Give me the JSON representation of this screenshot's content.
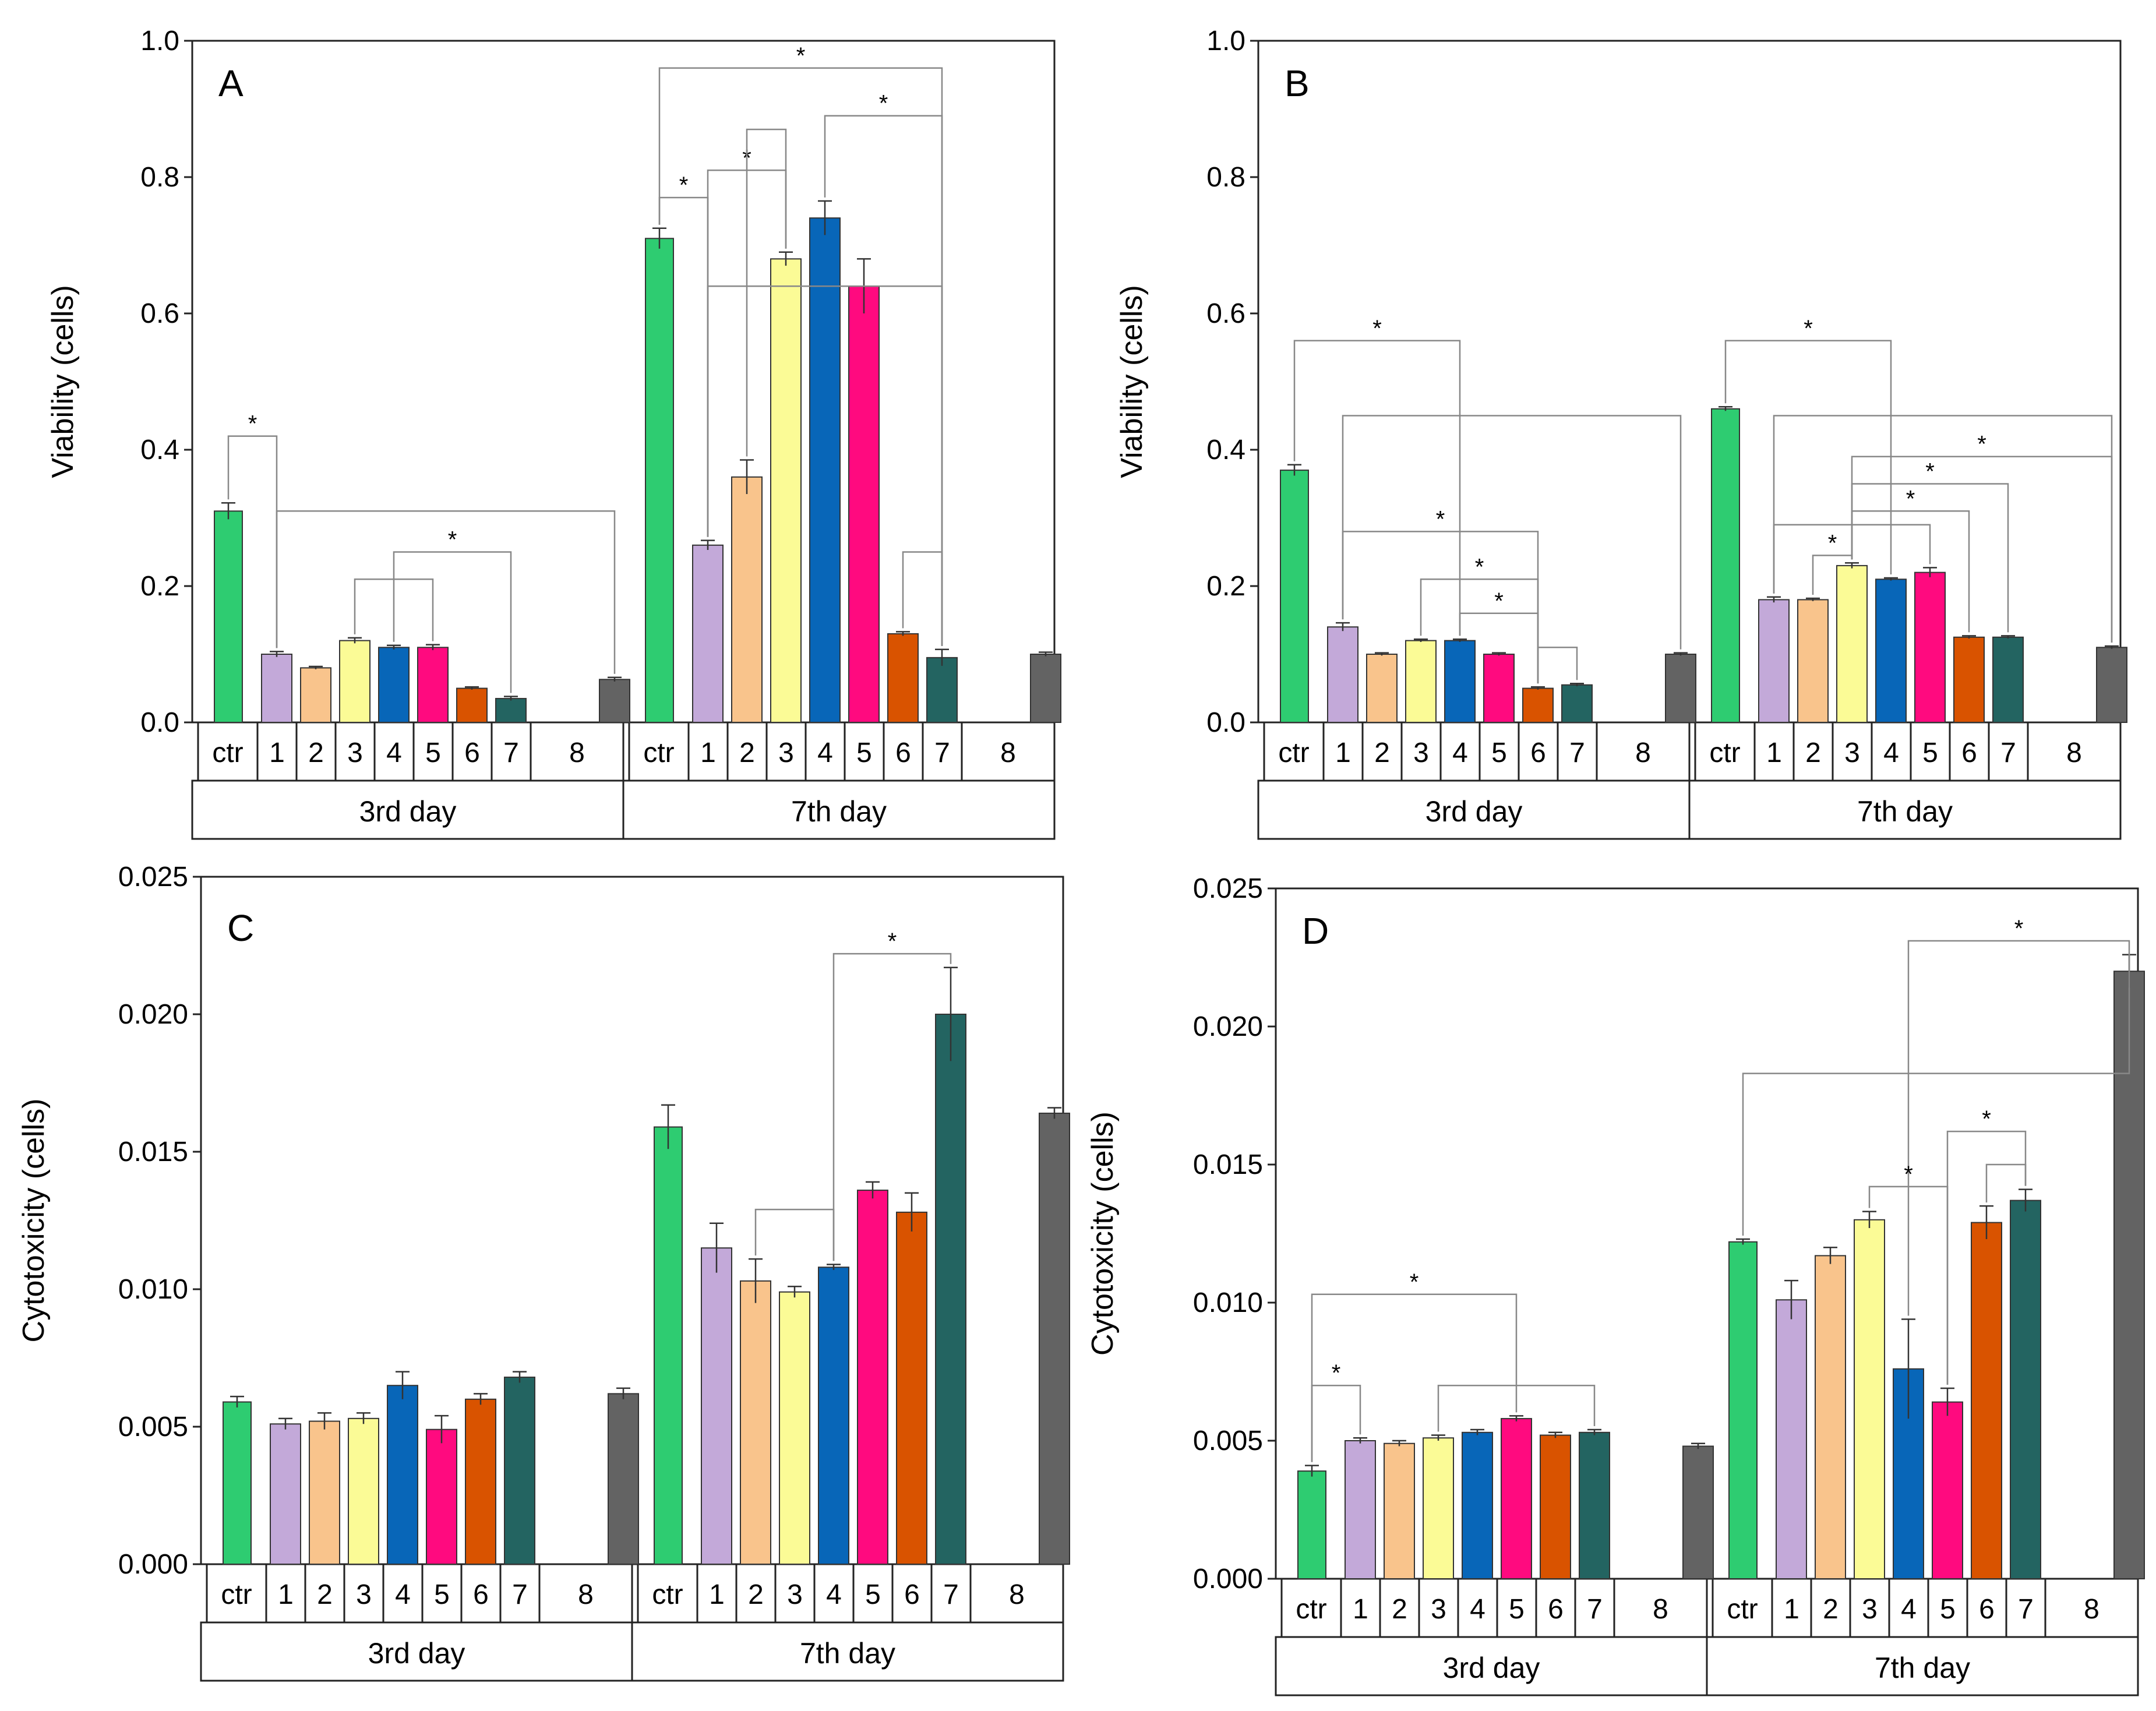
{
  "figure": {
    "colors": [
      "#2ecc71",
      "#c3a9d9",
      "#f9c48c",
      "#fbfb96",
      "#0866b8",
      "#ff0a7f",
      "#d95300",
      "#236461",
      "#636363"
    ]
  },
  "chart_data": [
    {
      "type": "bar",
      "panel": "A",
      "ylabel": "Viability (cells)",
      "ylim": [
        0,
        1.0
      ],
      "yticks": [
        "0.0",
        "0.2",
        "0.4",
        "0.6",
        "0.8",
        "1.0"
      ],
      "categories": [
        "ctr",
        "1",
        "2",
        "3",
        "4",
        "5",
        "6",
        "7",
        "8"
      ],
      "groups": [
        "3rd day",
        "7th day"
      ],
      "series": [
        {
          "name": "3rd day",
          "values": [
            0.31,
            0.1,
            0.08,
            0.12,
            0.11,
            0.11,
            0.05,
            0.035,
            0.063
          ],
          "errors": [
            0.012,
            0.004,
            0.002,
            0.004,
            0.003,
            0.004,
            0.002,
            0.003,
            0.003
          ]
        },
        {
          "name": "7th day",
          "values": [
            0.71,
            0.26,
            0.36,
            0.68,
            0.74,
            0.64,
            0.13,
            0.095,
            0.1
          ],
          "errors": [
            0.015,
            0.007,
            0.025,
            0.01,
            0.025,
            0.04,
            0.003,
            0.012,
            0.003
          ]
        }
      ],
      "brackets": [
        {
          "group": 0,
          "a": [
            0
          ],
          "b": [
            1,
            8
          ],
          "height": 0.42,
          "star": true
        },
        {
          "group": 0,
          "a": [
            1
          ],
          "b": [
            8
          ],
          "height": 0.31,
          "star": false
        },
        {
          "group": 0,
          "a": [
            4
          ],
          "b": [
            7
          ],
          "height": 0.25,
          "star": true
        },
        {
          "group": 0,
          "a": [
            3
          ],
          "b": [
            5
          ],
          "height": 0.21,
          "star": false
        },
        {
          "group": 1,
          "a": [
            0
          ],
          "b": [
            7
          ],
          "height": 0.96,
          "star": true
        },
        {
          "group": 1,
          "a": [
            0
          ],
          "b": [
            1
          ],
          "height": 0.77,
          "star": true
        },
        {
          "group": 1,
          "a": [
            1
          ],
          "b": [
            7
          ],
          "height": 0.64,
          "star": false
        },
        {
          "group": 1,
          "a": [
            1
          ],
          "b": [
            3
          ],
          "height": 0.81,
          "star": true
        },
        {
          "group": 1,
          "a": [
            2
          ],
          "b": [
            3
          ],
          "height": 0.87,
          "star": false
        },
        {
          "group": 1,
          "a": [
            4
          ],
          "b": [
            7
          ],
          "height": 0.89,
          "star": true
        },
        {
          "group": 1,
          "a": [
            6
          ],
          "b": [
            7
          ],
          "height": 0.25,
          "star": false
        }
      ]
    },
    {
      "type": "bar",
      "panel": "B",
      "ylabel": "Viability (cells)",
      "ylim": [
        0,
        1.0
      ],
      "yticks": [
        "0.0",
        "0.2",
        "0.4",
        "0.6",
        "0.8",
        "1.0"
      ],
      "categories": [
        "ctr",
        "1",
        "2",
        "3",
        "4",
        "5",
        "6",
        "7",
        "8"
      ],
      "groups": [
        "3rd day",
        "7th day"
      ],
      "series": [
        {
          "name": "3rd day",
          "values": [
            0.37,
            0.14,
            0.1,
            0.12,
            0.12,
            0.1,
            0.05,
            0.055,
            0.1
          ],
          "errors": [
            0.008,
            0.006,
            0.002,
            0.002,
            0.002,
            0.002,
            0.002,
            0.002,
            0.002
          ]
        },
        {
          "name": "7th day",
          "values": [
            0.46,
            0.18,
            0.18,
            0.23,
            0.21,
            0.22,
            0.125,
            0.125,
            0.11
          ],
          "errors": [
            0.003,
            0.004,
            0.002,
            0.004,
            0.002,
            0.007,
            0.002,
            0.002,
            0.002
          ]
        }
      ],
      "brackets": [
        {
          "group": 0,
          "a": [
            0
          ],
          "b": [
            4
          ],
          "height": 0.56,
          "star": true
        },
        {
          "group": 0,
          "a": [
            1
          ],
          "b": [
            8
          ],
          "height": 0.45,
          "star": false
        },
        {
          "group": 0,
          "a": [
            1
          ],
          "b": [
            6
          ],
          "height": 0.28,
          "star": true
        },
        {
          "group": 0,
          "a": [
            3
          ],
          "b": [
            6
          ],
          "height": 0.21,
          "star": true
        },
        {
          "group": 0,
          "a": [
            4
          ],
          "b": [
            6
          ],
          "height": 0.16,
          "star": true
        },
        {
          "group": 0,
          "a": [
            6
          ],
          "b": [
            7
          ],
          "height": 0.11,
          "star": false
        },
        {
          "group": 1,
          "a": [
            0
          ],
          "b": [
            4
          ],
          "height": 0.56,
          "star": true
        },
        {
          "group": 1,
          "a": [
            1
          ],
          "b": [
            8
          ],
          "height": 0.45,
          "star": false
        },
        {
          "group": 1,
          "a": [
            3
          ],
          "b": [
            8
          ],
          "height": 0.39,
          "star": true
        },
        {
          "group": 1,
          "a": [
            3
          ],
          "b": [
            7
          ],
          "height": 0.35,
          "star": true
        },
        {
          "group": 1,
          "a": [
            3
          ],
          "b": [
            6
          ],
          "height": 0.31,
          "star": true
        },
        {
          "group": 1,
          "a": [
            1
          ],
          "b": [
            5
          ],
          "height": 0.29,
          "star": false
        },
        {
          "group": 1,
          "a": [
            2
          ],
          "b": [
            3
          ],
          "height": 0.245,
          "star": true
        }
      ]
    },
    {
      "type": "bar",
      "panel": "C",
      "ylabel": "Cytotoxicity (cells)",
      "ylim": [
        0,
        0.025
      ],
      "yticks": [
        "0.000",
        "0.005",
        "0.010",
        "0.015",
        "0.020",
        "0.025"
      ],
      "categories": [
        "ctr",
        "1",
        "2",
        "3",
        "4",
        "5",
        "6",
        "7",
        "8"
      ],
      "groups": [
        "3rd day",
        "7th day"
      ],
      "series": [
        {
          "name": "3rd day",
          "values": [
            0.0059,
            0.0051,
            0.0052,
            0.0053,
            0.0065,
            0.0049,
            0.006,
            0.0068,
            0.0062
          ],
          "errors": [
            0.0002,
            0.0002,
            0.0003,
            0.0002,
            0.0005,
            0.0005,
            0.0002,
            0.0002,
            0.0002
          ]
        },
        {
          "name": "7th day",
          "values": [
            0.0159,
            0.0115,
            0.0103,
            0.0099,
            0.0108,
            0.0136,
            0.0128,
            0.02,
            0.0164
          ],
          "errors": [
            0.0008,
            0.0009,
            0.0008,
            0.0002,
            0.0001,
            0.0003,
            0.0007,
            0.0017,
            0.0002
          ]
        }
      ],
      "brackets": [
        {
          "group": 1,
          "a": [
            4
          ],
          "b": [
            7
          ],
          "height": 0.0222,
          "star": true
        },
        {
          "group": 1,
          "a": [
            2
          ],
          "b": [
            4
          ],
          "height": 0.0129,
          "star": false
        }
      ]
    },
    {
      "type": "bar",
      "panel": "D",
      "ylabel": "Cytotoxicity (cells)",
      "ylim": [
        0,
        0.025
      ],
      "yticks": [
        "0.000",
        "0.005",
        "0.010",
        "0.015",
        "0.020",
        "0.025"
      ],
      "categories": [
        "ctr",
        "1",
        "2",
        "3",
        "4",
        "5",
        "6",
        "7",
        "8"
      ],
      "groups": [
        "3rd day",
        "7th day"
      ],
      "series": [
        {
          "name": "3rd day",
          "values": [
            0.0039,
            0.005,
            0.0049,
            0.0051,
            0.0053,
            0.0058,
            0.0052,
            0.0053,
            0.0048
          ],
          "errors": [
            0.0002,
            0.0001,
            0.0001,
            0.0001,
            0.0001,
            0.0001,
            0.0001,
            0.0001,
            0.0001
          ]
        },
        {
          "name": "7th day",
          "values": [
            0.0122,
            0.0101,
            0.0117,
            0.013,
            0.0076,
            0.0064,
            0.0129,
            0.0137,
            0.022
          ],
          "errors": [
            0.0001,
            0.0007,
            0.0003,
            0.0003,
            0.0018,
            0.0005,
            0.0006,
            0.0004,
            0.0006
          ]
        }
      ],
      "brackets": [
        {
          "group": 0,
          "a": [
            0
          ],
          "b": [
            5
          ],
          "height": 0.0103,
          "star": true
        },
        {
          "group": 0,
          "a": [
            0
          ],
          "b": [
            1
          ],
          "height": 0.007,
          "star": true
        },
        {
          "group": 0,
          "a": [
            3
          ],
          "b": [
            7
          ],
          "height": 0.007,
          "star": false
        },
        {
          "group": 1,
          "a": [
            4
          ],
          "b": [
            8
          ],
          "height": 0.0231,
          "star": true
        },
        {
          "group": 1,
          "a": [
            0
          ],
          "b": [
            8
          ],
          "height": 0.0183,
          "star": false
        },
        {
          "group": 1,
          "a": [
            3
          ],
          "b": [
            5
          ],
          "height": 0.0142,
          "star": true
        },
        {
          "group": 1,
          "a": [
            5
          ],
          "b": [
            7
          ],
          "height": 0.0162,
          "star": true
        },
        {
          "group": 1,
          "a": [
            6
          ],
          "b": [
            7
          ],
          "height": 0.015,
          "star": false
        }
      ]
    }
  ]
}
